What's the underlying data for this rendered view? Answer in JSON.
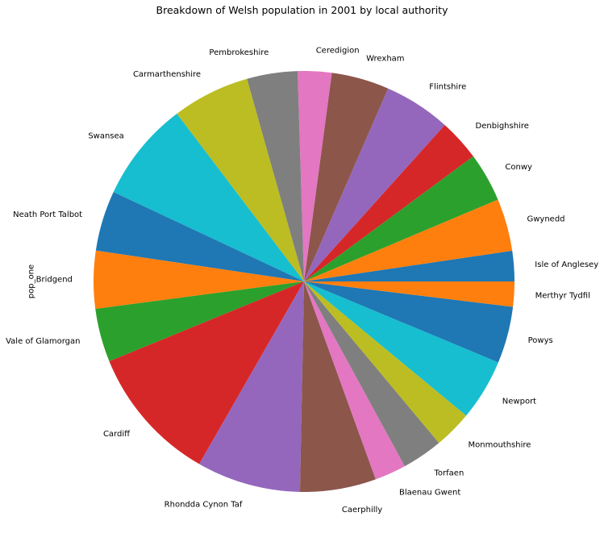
{
  "chart_data": {
    "type": "pie",
    "title": "Breakdown of Welsh population in 2001 by local authority",
    "ylabel": "pop_one",
    "start_angle_deg": 0,
    "direction": "counterclockwise",
    "palette": [
      "#1f77b4",
      "#ff7f0e",
      "#2ca02c",
      "#d62728",
      "#9467bd",
      "#8c564b",
      "#e377c2",
      "#7f7f7f",
      "#bcbd22",
      "#17becf"
    ],
    "categories": [
      "Isle of Anglesey",
      "Gwynedd",
      "Conwy",
      "Denbighshire",
      "Flintshire",
      "Wrexham",
      "Ceredigion",
      "Pembrokeshire",
      "Carmarthenshire",
      "Swansea",
      "Neath Port Talbot",
      "Bridgend",
      "Vale of Glamorgan",
      "Cardiff",
      "Rhondda Cynon Taf",
      "Caerphilly",
      "Blaenau Gwent",
      "Torfaen",
      "Monmouthshire",
      "Newport",
      "Powys",
      "Merthyr Tydfil"
    ],
    "values": [
      67800,
      116800,
      109600,
      93100,
      148600,
      128500,
      75400,
      112900,
      172800,
      223300,
      134500,
      128600,
      119200,
      305300,
      231900,
      169500,
      70000,
      90900,
      84900,
      137000,
      126300,
      56000
    ]
  }
}
